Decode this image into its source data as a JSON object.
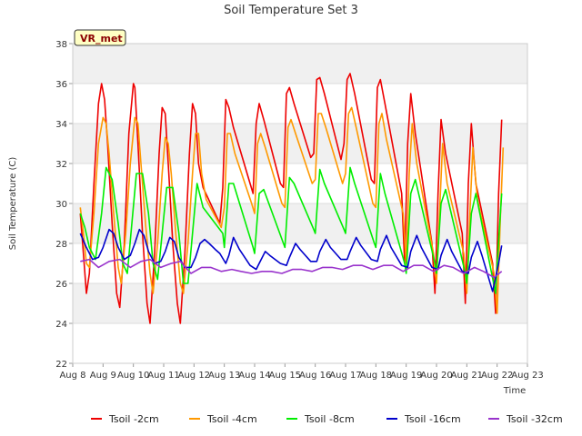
{
  "chart_data": {
    "type": "line",
    "title": "Soil Temperature Set 3",
    "xlabel": "Time",
    "ylabel": "Soil Temperature (C)",
    "badge": "VR_met",
    "x_ticks": [
      "Aug 8",
      "Aug 9",
      "Aug 10",
      "Aug 11",
      "Aug 12",
      "Aug 13",
      "Aug 14",
      "Aug 15",
      "Aug 16",
      "Aug 17",
      "Aug 18",
      "Aug 19",
      "Aug 20",
      "Aug 21",
      "Aug 22",
      "Aug 23"
    ],
    "xlim": [
      0,
      15
    ],
    "ylim": [
      22,
      38
    ],
    "y_ticks": [
      22,
      24,
      26,
      28,
      30,
      32,
      34,
      36,
      38
    ],
    "grid": true,
    "background": "alternating-bands",
    "legend_position": "bottom",
    "series": [
      {
        "name": "Tsoil -2cm",
        "color": "#ee0000",
        "x": [
          0.25,
          0.35,
          0.45,
          0.55,
          0.7,
          0.85,
          0.95,
          1.05,
          1.15,
          1.3,
          1.45,
          1.55,
          1.7,
          1.85,
          2.0,
          2.05,
          2.15,
          2.3,
          2.45,
          2.55,
          2.7,
          2.85,
          2.95,
          3.05,
          3.15,
          3.3,
          3.45,
          3.55,
          3.7,
          3.85,
          3.95,
          4.05,
          4.15,
          4.3,
          4.85,
          4.95,
          5.05,
          5.15,
          5.3,
          5.85,
          5.95,
          6.05,
          6.15,
          6.3,
          6.85,
          6.95,
          7.05,
          7.15,
          7.3,
          7.85,
          7.95,
          8.05,
          8.15,
          8.3,
          8.85,
          8.95,
          9.05,
          9.15,
          9.3,
          9.85,
          9.95,
          10.05,
          10.15,
          10.3,
          10.85,
          10.95,
          11.05,
          11.15,
          11.3,
          11.85,
          11.95,
          12.05,
          12.15,
          12.3,
          12.85,
          12.95,
          13.05,
          13.15,
          13.3,
          13.85,
          13.95,
          14.05,
          14.15
        ],
        "values": [
          29.5,
          27.5,
          25.5,
          26.5,
          31.0,
          35.0,
          36.0,
          35.2,
          33.0,
          29.0,
          25.5,
          24.8,
          28.0,
          33.5,
          36.0,
          35.8,
          33.0,
          28.5,
          25.0,
          24.0,
          27.5,
          32.5,
          34.8,
          34.5,
          32.0,
          28.0,
          25.0,
          24.0,
          27.5,
          32.5,
          35.0,
          34.5,
          32.0,
          30.8,
          29.0,
          30.8,
          35.2,
          34.8,
          33.8,
          31.0,
          30.5,
          34.0,
          35.0,
          34.2,
          31.0,
          30.8,
          35.5,
          35.8,
          35.0,
          32.3,
          32.5,
          36.2,
          36.3,
          35.5,
          32.2,
          33.0,
          36.2,
          36.5,
          35.5,
          31.2,
          31.0,
          35.8,
          36.2,
          35.0,
          30.5,
          27.0,
          33.0,
          35.5,
          33.5,
          28.0,
          25.5,
          30.5,
          34.2,
          32.5,
          28.5,
          25.0,
          31.0,
          34.0,
          31.0,
          27.0,
          24.5,
          30.5,
          34.2
        ]
      },
      {
        "name": "Tsoil -4cm",
        "color": "#ff9900",
        "x": [
          0.25,
          0.35,
          0.45,
          0.55,
          0.7,
          0.85,
          1.0,
          1.1,
          1.2,
          1.35,
          1.5,
          1.6,
          1.75,
          1.9,
          2.05,
          2.15,
          2.25,
          2.4,
          2.55,
          2.65,
          2.8,
          2.95,
          3.05,
          3.15,
          3.25,
          3.4,
          3.55,
          3.65,
          3.8,
          3.95,
          4.05,
          4.15,
          4.25,
          4.4,
          4.9,
          5.0,
          5.1,
          5.2,
          5.35,
          5.9,
          6.0,
          6.1,
          6.2,
          6.35,
          6.9,
          7.0,
          7.1,
          7.2,
          7.35,
          7.9,
          8.0,
          8.1,
          8.2,
          8.35,
          8.9,
          9.0,
          9.1,
          9.2,
          9.35,
          9.9,
          10.0,
          10.1,
          10.2,
          10.35,
          10.9,
          11.0,
          11.1,
          11.2,
          11.35,
          11.9,
          12.0,
          12.1,
          12.2,
          12.35,
          12.9,
          13.0,
          13.1,
          13.2,
          13.35,
          13.9,
          14.0,
          14.1,
          14.2
        ],
        "values": [
          29.8,
          28.5,
          27.0,
          26.8,
          29.5,
          33.0,
          34.3,
          34.0,
          32.5,
          29.5,
          26.8,
          26.0,
          28.5,
          32.0,
          34.3,
          34.0,
          32.0,
          29.0,
          26.5,
          25.5,
          28.0,
          31.5,
          33.3,
          33.0,
          31.5,
          28.5,
          26.0,
          25.5,
          28.0,
          31.5,
          33.5,
          33.5,
          31.5,
          30.2,
          28.8,
          29.8,
          33.5,
          33.5,
          32.5,
          30.0,
          29.5,
          33.0,
          33.5,
          32.8,
          30.0,
          29.8,
          33.8,
          34.2,
          33.5,
          31.0,
          31.2,
          34.5,
          34.5,
          33.8,
          31.0,
          31.5,
          34.5,
          34.8,
          33.8,
          30.0,
          29.8,
          34.0,
          34.5,
          33.2,
          29.5,
          27.0,
          31.5,
          34.0,
          32.0,
          27.5,
          26.0,
          29.5,
          33.0,
          31.0,
          27.5,
          25.5,
          29.5,
          32.8,
          30.2,
          26.5,
          24.5,
          29.0,
          32.8
        ]
      },
      {
        "name": "Tsoil -8cm",
        "color": "#00ee00",
        "x": [
          0.25,
          0.4,
          0.55,
          0.75,
          0.95,
          1.1,
          1.3,
          1.5,
          1.65,
          1.8,
          1.95,
          2.1,
          2.3,
          2.5,
          2.65,
          2.8,
          2.95,
          3.1,
          3.3,
          3.5,
          3.65,
          3.8,
          3.95,
          4.1,
          4.3,
          4.95,
          5.0,
          5.15,
          5.3,
          5.95,
          6.0,
          6.15,
          6.3,
          6.95,
          7.0,
          7.15,
          7.3,
          7.95,
          8.0,
          8.15,
          8.3,
          8.95,
          9.0,
          9.15,
          9.3,
          9.95,
          10.0,
          10.15,
          10.3,
          10.95,
          11.0,
          11.15,
          11.3,
          11.95,
          12.0,
          12.15,
          12.3,
          12.95,
          13.0,
          13.15,
          13.3,
          13.95,
          14.0,
          14.15
        ],
        "values": [
          29.5,
          28.8,
          27.8,
          27.2,
          29.5,
          31.8,
          31.2,
          29.0,
          27.0,
          26.5,
          29.0,
          31.5,
          31.5,
          29.5,
          27.0,
          26.2,
          28.5,
          30.8,
          30.8,
          28.5,
          26.0,
          26.0,
          28.5,
          31.0,
          29.8,
          28.5,
          27.8,
          31.0,
          31.0,
          27.8,
          27.5,
          30.5,
          30.7,
          28.0,
          27.8,
          31.3,
          31.0,
          28.7,
          28.5,
          31.7,
          31.0,
          28.7,
          28.5,
          31.8,
          31.0,
          28.0,
          27.8,
          31.5,
          30.5,
          27.0,
          26.5,
          30.5,
          31.2,
          27.0,
          26.5,
          30.0,
          30.7,
          26.5,
          26.0,
          29.5,
          30.5,
          25.5,
          27.0,
          30.5
        ]
      },
      {
        "name": "Tsoil -16cm",
        "color": "#0000cc",
        "x": [
          0.25,
          0.45,
          0.65,
          0.85,
          1.0,
          1.2,
          1.35,
          1.5,
          1.7,
          1.9,
          2.05,
          2.2,
          2.35,
          2.5,
          2.7,
          2.9,
          3.05,
          3.2,
          3.35,
          3.5,
          3.7,
          3.9,
          4.05,
          4.2,
          4.35,
          4.5,
          4.7,
          4.85,
          5.05,
          5.15,
          5.3,
          5.5,
          5.85,
          6.05,
          6.15,
          6.35,
          6.5,
          6.85,
          7.05,
          7.15,
          7.35,
          7.5,
          7.85,
          8.05,
          8.15,
          8.35,
          8.5,
          8.85,
          9.05,
          9.15,
          9.35,
          9.5,
          9.85,
          10.05,
          10.15,
          10.35,
          10.5,
          10.85,
          11.05,
          11.15,
          11.35,
          11.5,
          11.85,
          12.05,
          12.15,
          12.35,
          12.5,
          12.85,
          13.05,
          13.15,
          13.35,
          13.5,
          13.85,
          14.05,
          14.15
        ],
        "values": [
          28.5,
          27.8,
          27.2,
          27.3,
          27.8,
          28.7,
          28.5,
          27.8,
          27.2,
          27.4,
          28.0,
          28.7,
          28.4,
          27.6,
          27.0,
          27.1,
          27.6,
          28.3,
          28.1,
          27.3,
          26.8,
          26.8,
          27.3,
          28.0,
          28.2,
          28.0,
          27.7,
          27.5,
          27.0,
          27.4,
          28.3,
          27.7,
          26.9,
          26.7,
          27.0,
          27.6,
          27.4,
          27.0,
          26.9,
          27.3,
          28.0,
          27.7,
          27.1,
          27.1,
          27.6,
          28.2,
          27.8,
          27.2,
          27.2,
          27.6,
          28.3,
          27.9,
          27.2,
          27.1,
          27.7,
          28.4,
          27.8,
          26.9,
          26.8,
          27.6,
          28.4,
          27.8,
          26.8,
          26.7,
          27.4,
          28.2,
          27.6,
          26.6,
          26.5,
          27.3,
          28.1,
          27.4,
          25.6,
          27.0,
          27.9
        ]
      },
      {
        "name": "Tsoil -32cm",
        "color": "#9933cc",
        "x": [
          0.25,
          0.55,
          0.85,
          1.2,
          1.55,
          1.9,
          2.25,
          2.55,
          2.9,
          3.25,
          3.55,
          3.9,
          4.25,
          4.55,
          4.9,
          5.25,
          5.55,
          5.9,
          6.25,
          6.55,
          6.9,
          7.25,
          7.55,
          7.9,
          8.25,
          8.55,
          8.9,
          9.25,
          9.55,
          9.9,
          10.25,
          10.55,
          10.9,
          11.25,
          11.55,
          11.9,
          12.25,
          12.55,
          12.9,
          13.25,
          13.55,
          13.9,
          14.15
        ],
        "values": [
          27.1,
          27.2,
          26.8,
          27.1,
          27.2,
          26.8,
          27.1,
          27.2,
          26.8,
          27.0,
          27.1,
          26.5,
          26.8,
          26.8,
          26.6,
          26.7,
          26.6,
          26.5,
          26.6,
          26.6,
          26.5,
          26.7,
          26.7,
          26.6,
          26.8,
          26.8,
          26.7,
          26.9,
          26.9,
          26.7,
          26.9,
          26.9,
          26.6,
          26.9,
          26.9,
          26.6,
          26.9,
          26.8,
          26.5,
          26.8,
          26.6,
          26.3,
          26.6
        ]
      }
    ]
  }
}
